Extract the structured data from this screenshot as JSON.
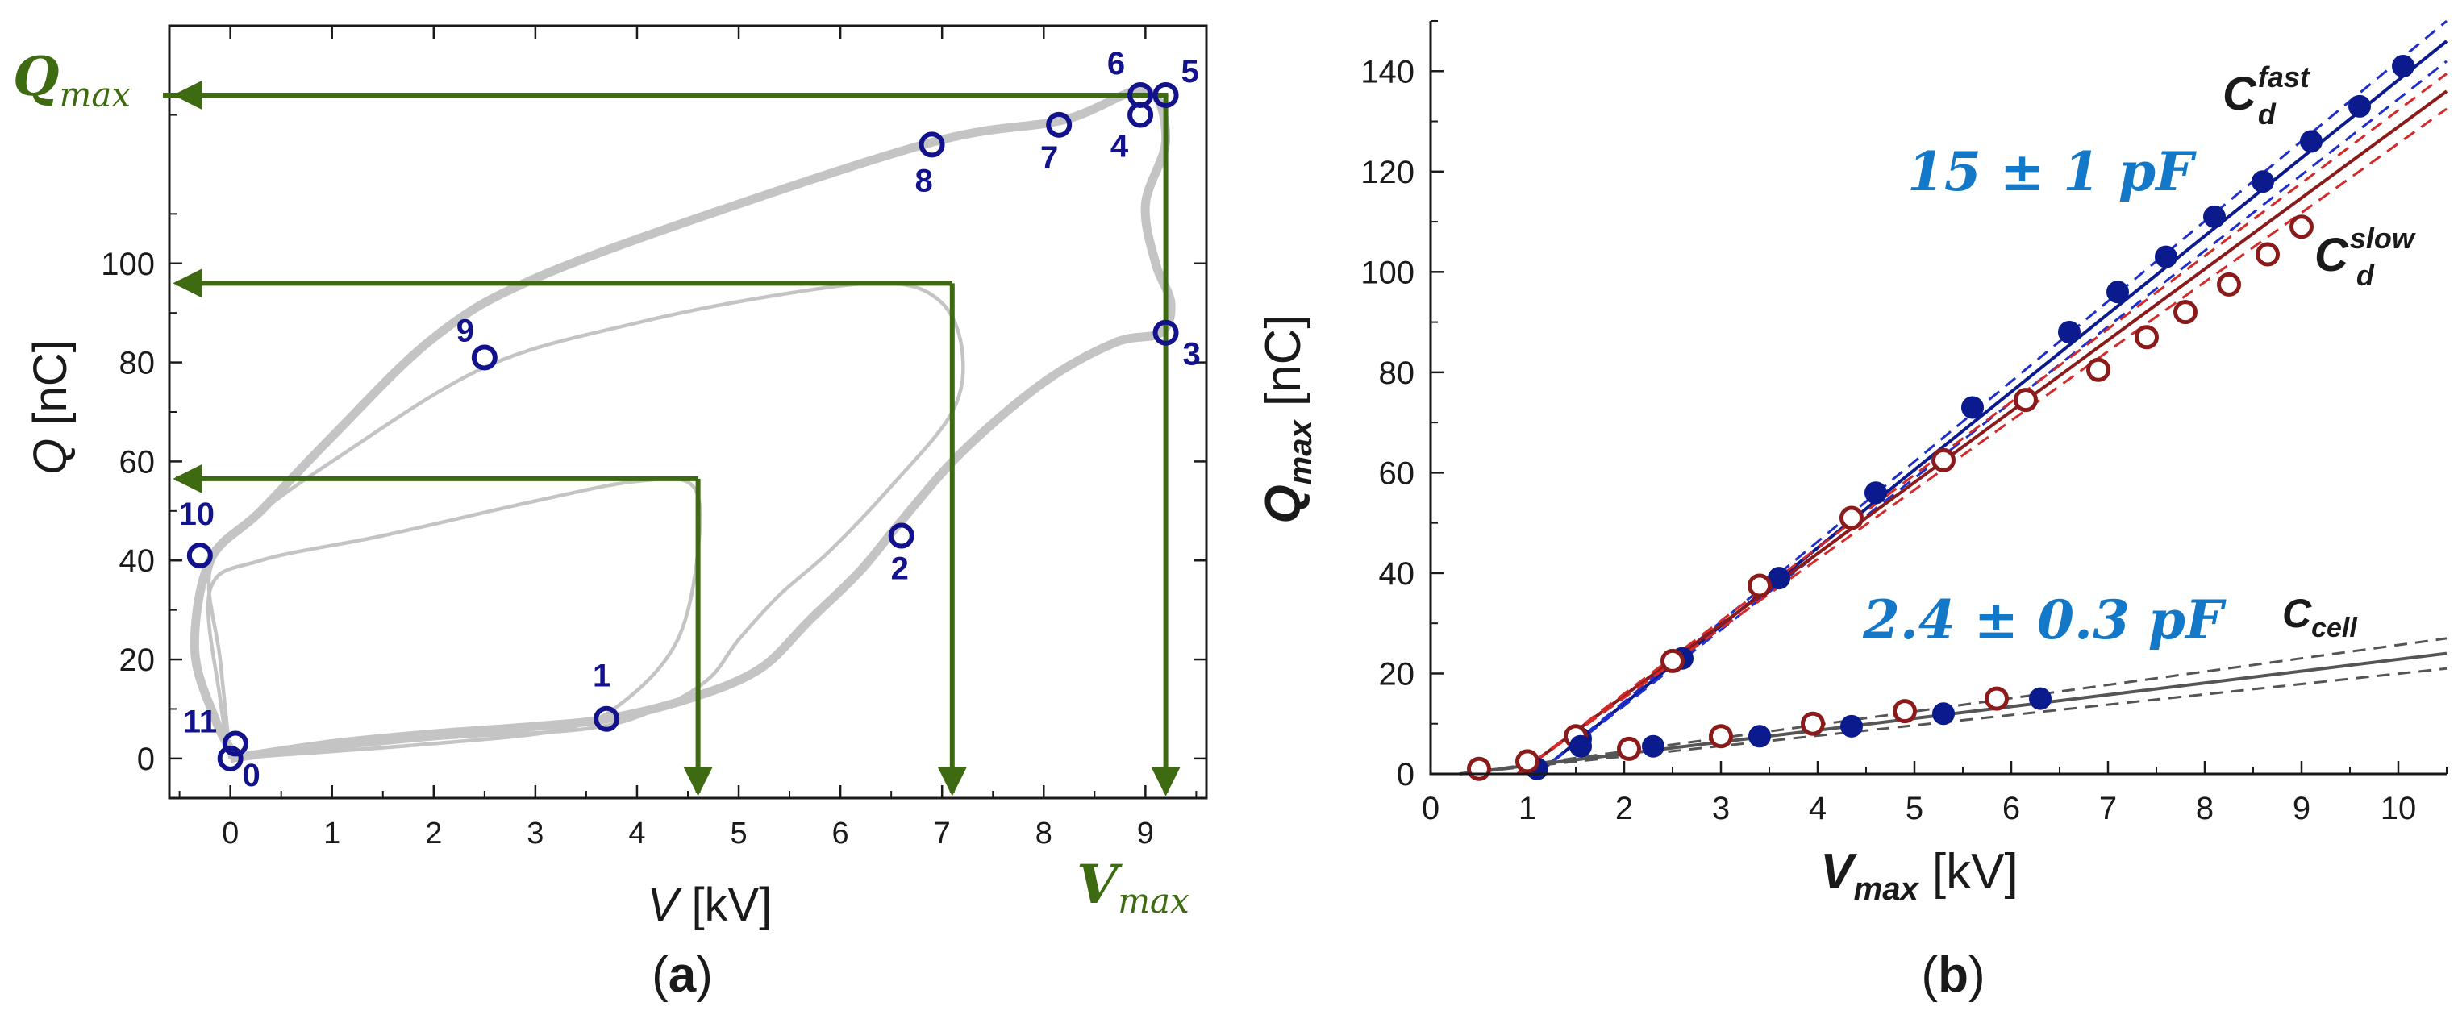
{
  "chart_data": [
    {
      "panel": "a",
      "type": "line",
      "caption": "(a)",
      "xlabel_var": "V",
      "xlabel_unit": " [kV]",
      "ylabel_var": "Q",
      "ylabel_unit": " [nC]",
      "xlim": [
        -0.6,
        9.6
      ],
      "ylim": [
        -8,
        148
      ],
      "xticks": [
        0,
        1,
        2,
        3,
        4,
        5,
        6,
        7,
        8,
        9
      ],
      "yticks": [
        0,
        20,
        40,
        60,
        80,
        100
      ],
      "ytick_labels": [
        "0",
        "20",
        "40",
        "60",
        "80",
        "100"
      ],
      "qmax_label_main": "Q",
      "qmax_label_sub": "max",
      "vmax_label_main": "V",
      "vmax_label_sub": "max",
      "colors": {
        "loop": "#c4c4c4",
        "arrow": "#3e6b12",
        "marker": "#12128c",
        "axis": "#1a1a1a"
      },
      "series": [
        {
          "name": "large loop",
          "x": [
            0,
            1,
            2,
            3,
            3.7,
            4.5,
            5.2,
            5.7,
            6.2,
            6.6,
            7.2,
            8.0,
            8.7,
            9.15,
            9.25,
            9.1,
            9.0,
            9.2,
            9.0,
            8.2,
            7.0,
            5.0,
            3.0,
            2.0,
            1.0,
            0.3,
            -0.2,
            -0.35,
            -0.15,
            0,
            0.1
          ],
          "y": [
            0,
            3,
            5,
            6.5,
            8,
            12,
            18,
            28,
            38,
            48,
            62,
            76,
            84,
            86,
            92,
            100,
            112,
            125,
            135,
            129,
            125,
            112,
            97,
            85,
            65,
            50,
            40,
            22,
            8,
            2,
            0
          ]
        },
        {
          "name": "medium loop",
          "x": [
            0,
            2,
            3.5,
            4.2,
            4.7,
            5.0,
            5.4,
            5.9,
            6.5,
            7.1,
            7.2,
            7.0,
            6.5,
            5.5,
            4.0,
            2.5,
            1.0,
            0.2,
            -0.2,
            -0.1,
            0
          ],
          "y": [
            0,
            4,
            6,
            10,
            16,
            24,
            33,
            42,
            55,
            70,
            82,
            92,
            96,
            94,
            88,
            79,
            60,
            48,
            38,
            20,
            0
          ]
        },
        {
          "name": "small loop",
          "x": [
            0,
            2,
            3.3,
            3.9,
            4.4,
            4.6,
            4.55,
            4.0,
            3.0,
            1.5,
            0.3,
            -0.2,
            -0.1,
            0
          ],
          "y": [
            0,
            3,
            6,
            12,
            24,
            42,
            55,
            56,
            52,
            45,
            40,
            34,
            12,
            0
          ]
        }
      ],
      "points": [
        {
          "label": "0",
          "v": 0.0,
          "q": 0
        },
        {
          "label": "11",
          "v": 0.05,
          "q": 3
        },
        {
          "label": "1",
          "v": 3.7,
          "q": 8
        },
        {
          "label": "2",
          "v": 6.6,
          "q": 45
        },
        {
          "label": "3",
          "v": 9.2,
          "q": 86
        },
        {
          "label": "4",
          "v": 8.95,
          "q": 130
        },
        {
          "label": "5",
          "v": 9.2,
          "q": 134
        },
        {
          "label": "6",
          "v": 8.95,
          "q": 134
        },
        {
          "label": "7",
          "v": 8.15,
          "q": 128
        },
        {
          "label": "8",
          "v": 6.9,
          "q": 124
        },
        {
          "label": "9",
          "v": 2.5,
          "q": 81
        },
        {
          "label": "10",
          "v": -0.3,
          "q": 41
        }
      ],
      "arrows": [
        {
          "vmax": 4.6,
          "qmax": 56.5
        },
        {
          "vmax": 7.1,
          "qmax": 96
        },
        {
          "vmax": 9.2,
          "qmax": 134
        }
      ]
    },
    {
      "panel": "b",
      "type": "scatter",
      "caption": "(b)",
      "xlabel_var": "V",
      "xlabel_sub": "max",
      "xlabel_unit": " [kV]",
      "ylabel_var": "Q",
      "ylabel_sub": "max",
      "ylabel_unit": " [nC]",
      "xlim": [
        0,
        10.5
      ],
      "ylim": [
        0,
        150
      ],
      "xticks": [
        0,
        1,
        2,
        3,
        4,
        5,
        6,
        7,
        8,
        9,
        10
      ],
      "yticks": [
        0,
        20,
        40,
        60,
        80,
        100,
        120,
        140
      ],
      "colors": {
        "fast": "#0b1a8c",
        "slow": "#8b1a1a",
        "fast_fit": "#1f2fcc",
        "slow_fit": "#d42a2a",
        "cell": "#555555",
        "annotation": "#1478c8",
        "axis": "#1a1a1a"
      },
      "annotation_top": "15 ± 1 pF",
      "annotation_bottom": "2.4 ± 0.3 pF",
      "label_fast_main": "C",
      "label_fast_sub": "d",
      "label_fast_sup": "fast",
      "label_slow_main": "C",
      "label_slow_sub": "d",
      "label_slow_sup": "slow",
      "label_cell_main": "C",
      "label_cell_sub": "cell",
      "series": [
        {
          "name": "fast upper",
          "marker": "filled",
          "x": [
            1.1,
            1.55,
            2.6,
            3.6,
            4.6,
            5.6,
            6.6,
            7.1,
            7.6,
            8.1,
            8.6,
            9.1,
            9.6,
            10.05
          ],
          "y": [
            1,
            7,
            23,
            39,
            56,
            73,
            88,
            96,
            103,
            111,
            118,
            126,
            133,
            141
          ]
        },
        {
          "name": "slow upper",
          "marker": "open",
          "x": [
            0.5,
            1.0,
            1.5,
            2.5,
            3.4,
            4.35,
            5.3,
            6.15,
            6.9,
            7.4,
            7.8,
            8.25,
            8.65,
            9.0
          ],
          "y": [
            1,
            2.5,
            7.5,
            22.5,
            37.5,
            51,
            62.5,
            74.5,
            80.5,
            87,
            92,
            97.5,
            103.5,
            109
          ]
        },
        {
          "name": "fast lower",
          "marker": "filled",
          "x": [
            1.55,
            2.3,
            3.4,
            4.35,
            5.3,
            6.3
          ],
          "y": [
            5.5,
            5.5,
            7.5,
            9.5,
            12,
            15
          ]
        },
        {
          "name": "slow lower",
          "marker": "open",
          "x": [
            2.05,
            3.0,
            3.95,
            4.9,
            5.85
          ],
          "y": [
            5,
            7.5,
            10,
            12.5,
            15
          ]
        }
      ],
      "fits": [
        {
          "name": "fast fit",
          "x": [
            1.1,
            10.5
          ],
          "y": [
            0,
            146
          ],
          "band": 4
        },
        {
          "name": "slow fit",
          "x": [
            0.9,
            10.5
          ],
          "y": [
            0,
            136
          ],
          "band": 3.5
        },
        {
          "name": "cell fit",
          "x": [
            0.3,
            10.5
          ],
          "y": [
            0,
            24
          ],
          "band": 3
        }
      ]
    }
  ]
}
